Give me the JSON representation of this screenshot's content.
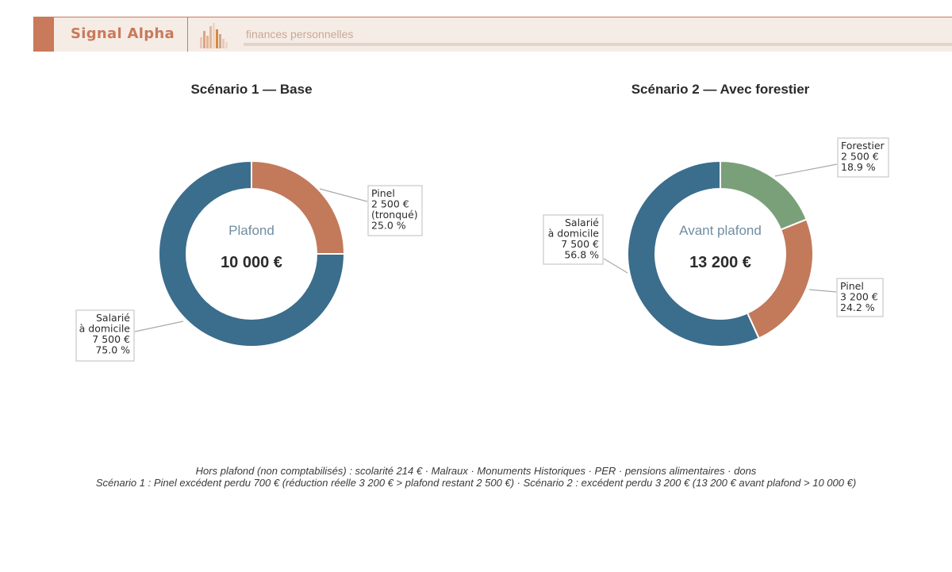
{
  "header": {
    "brand": "Signal Alpha",
    "tagline": "finances personnelles",
    "colors": {
      "accent": "#c97a5a",
      "background": "#f6ece6"
    }
  },
  "chart_data": [
    {
      "type": "pie",
      "donut": true,
      "title": "Scénario 1 — Base",
      "center_label": "Plafond",
      "center_value": "10 000 €",
      "slices": [
        {
          "name": "Pinel",
          "value": 2500,
          "percent": 25.0,
          "color": "#c27a5a",
          "label_lines": [
            "Pinel",
            "2 500 €",
            "(tronqué)",
            "25.0 %"
          ],
          "label_side": "right"
        },
        {
          "name": "Salarié à domicile",
          "value": 7500,
          "percent": 75.0,
          "color": "#3b6d8c",
          "label_lines": [
            "Salarié",
            "à domicile",
            "7 500 €",
            "75.0 %"
          ],
          "label_side": "left"
        }
      ]
    },
    {
      "type": "pie",
      "donut": true,
      "title": "Scénario 2 — Avec forestier",
      "center_label": "Avant plafond",
      "center_value": "13 200 €",
      "slices": [
        {
          "name": "Forestier",
          "value": 2500,
          "percent": 18.9,
          "color": "#7aa07a",
          "label_lines": [
            "Forestier",
            "2 500 €",
            "18.9 %"
          ],
          "label_side": "right"
        },
        {
          "name": "Pinel",
          "value": 3200,
          "percent": 24.2,
          "color": "#c27a5a",
          "label_lines": [
            "Pinel",
            "3 200 €",
            "24.2 %"
          ],
          "label_side": "right"
        },
        {
          "name": "Salarié à domicile",
          "value": 7500,
          "percent": 56.8,
          "color": "#3b6d8c",
          "label_lines": [
            "Salarié",
            "à domicile",
            "7 500 €",
            "56.8 %"
          ],
          "label_side": "left"
        }
      ]
    }
  ],
  "footnotes": {
    "line1": "Hors plafond (non comptabilisés) : scolarité 214 € · Malraux · Monuments Historiques · PER · pensions alimentaires · dons",
    "line2": "Scénario 1 : Pinel excédent perdu 700 € (réduction réelle 3 200 € > plafond restant 2 500 €) · Scénario 2 : excédent perdu 3 200 € (13 200 € avant plafond > 10 000 €)"
  }
}
